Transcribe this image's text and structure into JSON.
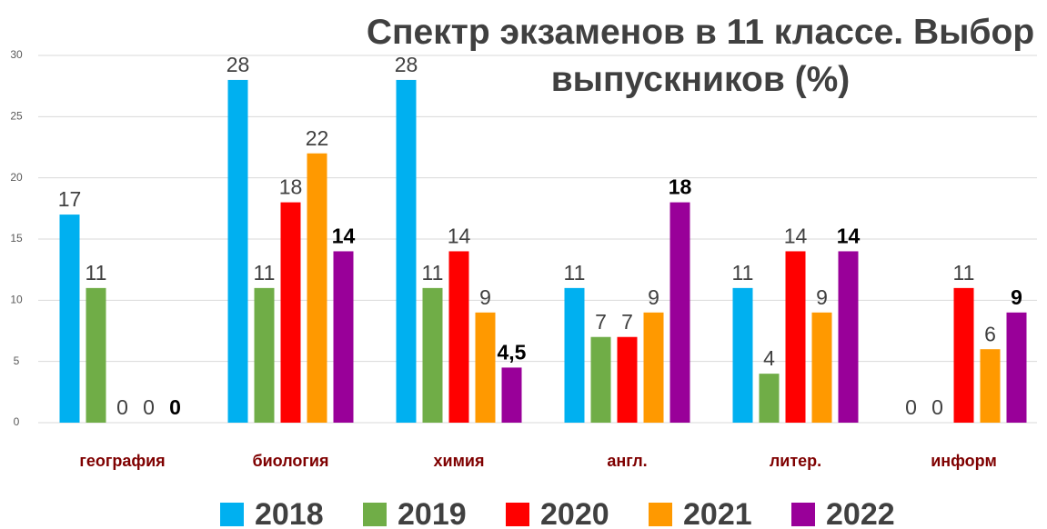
{
  "chart_data": {
    "type": "bar",
    "title": "Спектр экзаменов в 11 классе. Выбор выпускников (%)",
    "categories": [
      "география",
      "биология",
      "химия",
      "англ.",
      "литер.",
      "информ"
    ],
    "series": [
      {
        "name": "2018",
        "color": "#00b0f0",
        "values": [
          17,
          28,
          28,
          11,
          11,
          0
        ]
      },
      {
        "name": "2019",
        "color": "#70ad47",
        "values": [
          11,
          11,
          11,
          7,
          4,
          0
        ]
      },
      {
        "name": "2020",
        "color": "#ff0000",
        "values": [
          0,
          18,
          14,
          7,
          14,
          11
        ]
      },
      {
        "name": "2021",
        "color": "#ff9900",
        "values": [
          0,
          22,
          9,
          9,
          9,
          6
        ]
      },
      {
        "name": "2022",
        "color": "#990099",
        "values": [
          0,
          14,
          4.5,
          18,
          14,
          9
        ],
        "value_labels": [
          "0",
          "14",
          "4,5",
          "18",
          "14",
          "9"
        ]
      }
    ],
    "ylim": [
      0,
      30
    ],
    "yticks": [
      0,
      5,
      10,
      15,
      20,
      25,
      30
    ],
    "grid": true,
    "legend": "bottom"
  }
}
